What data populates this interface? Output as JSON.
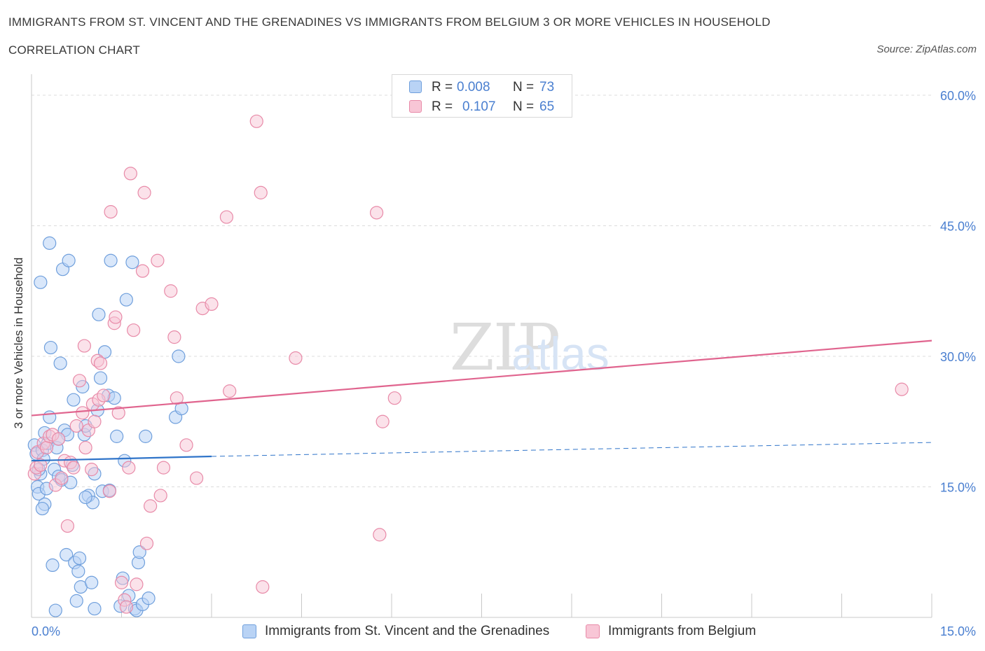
{
  "header": {
    "title": "IMMIGRANTS FROM ST. VINCENT AND THE GRENADINES VS IMMIGRANTS FROM BELGIUM 3 OR MORE VEHICLES IN HOUSEHOLD",
    "subtitle": "CORRELATION CHART",
    "source": "Source: ZipAtlas.com"
  },
  "watermark": {
    "zip": "ZIP",
    "atlas": "atlas"
  },
  "colors": {
    "blue_fill": "#b9d3f5",
    "blue_stroke": "#6f9fdc",
    "blue_line": "#2f74c9",
    "pink_fill": "#f8c6d6",
    "pink_stroke": "#e88aa8",
    "pink_line": "#e0648e",
    "tick_text": "#4a7fd0",
    "grid": "#dcdcdc"
  },
  "legend": {
    "rows": [
      {
        "r_label": "R =",
        "r_value": "0.008",
        "n_label": "N =",
        "n_value": "73"
      },
      {
        "r_label": "R =",
        "r_value": "0.107",
        "n_label": "N =",
        "n_value": "65"
      }
    ]
  },
  "bottom_legend": {
    "series1": "Immigrants from St. Vincent and the Grenadines",
    "series2": "Immigrants from Belgium"
  },
  "chart_data": {
    "type": "scatter",
    "title": "IMMIGRANTS FROM ST. VINCENT AND THE GRENADINES VS IMMIGRANTS FROM BELGIUM 3 OR MORE VEHICLES IN HOUSEHOLD",
    "xlabel": "",
    "ylabel": "3 or more Vehicles in Household",
    "xlim": [
      0,
      15
    ],
    "ylim": [
      0,
      60
    ],
    "x_tick_labels": [
      "0.0%",
      "15.0%"
    ],
    "y_ticks": [
      15,
      30,
      45,
      60
    ],
    "y_tick_labels": [
      "15.0%",
      "30.0%",
      "45.0%",
      "60.0%"
    ],
    "series": [
      {
        "name": "Immigrants from St. Vincent and the Grenadines",
        "R": 0.008,
        "N": 73,
        "trend": {
          "x0": 0,
          "y0": 18.0,
          "x1": 3.0,
          "y1": 18.5,
          "x_end": 15,
          "y_end": 20.1
        },
        "points": [
          [
            0.05,
            19.8
          ],
          [
            0.08,
            18.8
          ],
          [
            0.1,
            15.0
          ],
          [
            0.12,
            14.2
          ],
          [
            0.15,
            16.5
          ],
          [
            0.18,
            19.2
          ],
          [
            0.2,
            18.2
          ],
          [
            0.22,
            13.0
          ],
          [
            0.25,
            14.8
          ],
          [
            0.27,
            20.0
          ],
          [
            0.3,
            23.0
          ],
          [
            0.32,
            31.0
          ],
          [
            0.35,
            6.0
          ],
          [
            0.38,
            17.0
          ],
          [
            0.4,
            0.8
          ],
          [
            0.42,
            19.5
          ],
          [
            0.45,
            16.2
          ],
          [
            0.48,
            29.2
          ],
          [
            0.5,
            15.8
          ],
          [
            0.52,
            40.0
          ],
          [
            0.55,
            21.5
          ],
          [
            0.58,
            7.2
          ],
          [
            0.6,
            21.0
          ],
          [
            0.62,
            41.0
          ],
          [
            0.65,
            15.5
          ],
          [
            0.68,
            17.5
          ],
          [
            0.7,
            25.0
          ],
          [
            0.72,
            6.3
          ],
          [
            0.75,
            1.9
          ],
          [
            0.78,
            5.3
          ],
          [
            0.8,
            6.8
          ],
          [
            0.82,
            3.5
          ],
          [
            0.85,
            26.5
          ],
          [
            0.88,
            21.0
          ],
          [
            0.9,
            22.0
          ],
          [
            0.95,
            14.0
          ],
          [
            1.0,
            4.0
          ],
          [
            1.02,
            13.2
          ],
          [
            1.05,
            16.5
          ],
          [
            1.1,
            23.8
          ],
          [
            1.12,
            34.8
          ],
          [
            1.15,
            27.5
          ],
          [
            1.18,
            14.5
          ],
          [
            1.22,
            30.5
          ],
          [
            1.28,
            25.5
          ],
          [
            1.32,
            41.0
          ],
          [
            1.38,
            25.2
          ],
          [
            1.42,
            20.8
          ],
          [
            1.48,
            1.3
          ],
          [
            1.52,
            4.5
          ],
          [
            1.55,
            18.0
          ],
          [
            1.58,
            36.5
          ],
          [
            1.62,
            2.5
          ],
          [
            1.68,
            40.8
          ],
          [
            1.72,
            1.0
          ],
          [
            1.75,
            0.8
          ],
          [
            1.78,
            6.3
          ],
          [
            1.8,
            7.5
          ],
          [
            1.85,
            1.5
          ],
          [
            1.9,
            20.8
          ],
          [
            1.95,
            2.2
          ],
          [
            2.4,
            23.0
          ],
          [
            2.45,
            30.0
          ],
          [
            2.5,
            24.0
          ],
          [
            0.15,
            38.5
          ],
          [
            0.3,
            43.0
          ],
          [
            0.9,
            13.8
          ],
          [
            1.3,
            14.6
          ],
          [
            0.45,
            20.5
          ],
          [
            0.12,
            17.0
          ],
          [
            0.18,
            12.5
          ],
          [
            0.22,
            21.2
          ],
          [
            1.05,
            1.0
          ]
        ]
      },
      {
        "name": "Immigrants from Belgium",
        "R": 0.107,
        "N": 65,
        "trend": {
          "x0": 0,
          "y0": 23.2,
          "x1": 15,
          "y1": 31.8
        },
        "points": [
          [
            0.05,
            16.5
          ],
          [
            0.08,
            17.2
          ],
          [
            0.1,
            19.0
          ],
          [
            0.15,
            17.5
          ],
          [
            0.2,
            20.0
          ],
          [
            0.25,
            19.5
          ],
          [
            0.3,
            20.8
          ],
          [
            0.35,
            21.0
          ],
          [
            0.4,
            15.2
          ],
          [
            0.45,
            20.5
          ],
          [
            0.5,
            16.0
          ],
          [
            0.55,
            18.0
          ],
          [
            0.6,
            10.5
          ],
          [
            0.65,
            17.8
          ],
          [
            0.7,
            17.2
          ],
          [
            0.75,
            22.0
          ],
          [
            0.8,
            27.2
          ],
          [
            0.85,
            23.5
          ],
          [
            0.88,
            31.2
          ],
          [
            0.9,
            19.5
          ],
          [
            0.95,
            21.5
          ],
          [
            1.0,
            17.0
          ],
          [
            1.02,
            24.5
          ],
          [
            1.05,
            22.5
          ],
          [
            1.1,
            29.5
          ],
          [
            1.12,
            25.0
          ],
          [
            1.15,
            29.2
          ],
          [
            1.2,
            25.5
          ],
          [
            1.3,
            14.5
          ],
          [
            1.32,
            46.6
          ],
          [
            1.38,
            33.8
          ],
          [
            1.4,
            34.5
          ],
          [
            1.45,
            23.5
          ],
          [
            1.5,
            4.0
          ],
          [
            1.55,
            2.0
          ],
          [
            1.58,
            1.2
          ],
          [
            1.62,
            17.2
          ],
          [
            1.65,
            51.0
          ],
          [
            1.7,
            33.0
          ],
          [
            1.75,
            3.8
          ],
          [
            1.85,
            39.8
          ],
          [
            1.88,
            48.8
          ],
          [
            1.92,
            8.5
          ],
          [
            1.98,
            12.8
          ],
          [
            2.1,
            41.0
          ],
          [
            2.15,
            14.0
          ],
          [
            2.2,
            17.2
          ],
          [
            2.32,
            37.5
          ],
          [
            2.38,
            32.2
          ],
          [
            2.42,
            25.2
          ],
          [
            2.58,
            19.8
          ],
          [
            2.75,
            16.0
          ],
          [
            2.85,
            35.5
          ],
          [
            3.0,
            36.0
          ],
          [
            3.25,
            46.0
          ],
          [
            3.3,
            26.0
          ],
          [
            3.75,
            57.0
          ],
          [
            3.82,
            48.8
          ],
          [
            3.85,
            3.5
          ],
          [
            4.4,
            29.8
          ],
          [
            5.75,
            46.5
          ],
          [
            5.8,
            9.5
          ],
          [
            5.85,
            22.5
          ],
          [
            6.05,
            25.2
          ],
          [
            14.5,
            26.2
          ]
        ]
      }
    ]
  }
}
